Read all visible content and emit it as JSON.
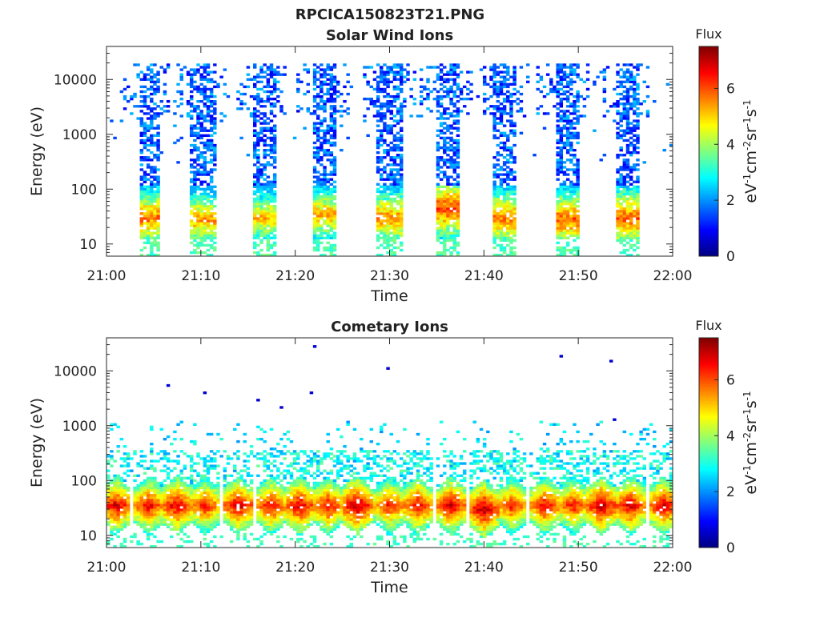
{
  "figure_title": "RPCICA150823T21.PNG",
  "chart_data": [
    {
      "type": "heatmap",
      "title": "Solar Wind Ions",
      "xlabel": "Time",
      "ylabel": "Energy (eV)",
      "x_range": [
        "21:00",
        "22:00"
      ],
      "x_ticks": [
        "21:00",
        "21:10",
        "21:20",
        "21:30",
        "21:40",
        "21:50",
        "22:00"
      ],
      "y_scale": "log",
      "y_range": [
        6,
        40000
      ],
      "y_ticks": [
        10,
        100,
        1000,
        10000
      ],
      "y_tick_labels": [
        "10",
        "100",
        "1000",
        "10000"
      ],
      "colorbar": {
        "title": "Flux",
        "label": "eV-1cm-2sr-1s-1",
        "range": [
          0,
          7.5
        ],
        "ticks": [
          0,
          2,
          4,
          6
        ],
        "tick_labels": [
          "0",
          "2",
          "4",
          "6"
        ],
        "colormap": "jet"
      },
      "bursts": [
        {
          "t_start_min": 3.5,
          "t_end_min": 5.5,
          "peak_energy_ev": 30,
          "peak_flux": 5.8
        },
        {
          "t_start_min": 9.0,
          "t_end_min": 11.5,
          "peak_energy_ev": 28,
          "peak_flux": 5.5
        },
        {
          "t_start_min": 15.5,
          "t_end_min": 18.0,
          "peak_energy_ev": 30,
          "peak_flux": 5.2
        },
        {
          "t_start_min": 22.0,
          "t_end_min": 24.5,
          "peak_energy_ev": 35,
          "peak_flux": 5.4
        },
        {
          "t_start_min": 28.5,
          "t_end_min": 31.5,
          "peak_energy_ev": 30,
          "peak_flux": 5.6
        },
        {
          "t_start_min": 35.0,
          "t_end_min": 37.5,
          "peak_energy_ev": 45,
          "peak_flux": 6.2
        },
        {
          "t_start_min": 41.0,
          "t_end_min": 43.5,
          "peak_energy_ev": 30,
          "peak_flux": 5.8
        },
        {
          "t_start_min": 47.5,
          "t_end_min": 50.0,
          "peak_energy_ev": 28,
          "peak_flux": 6.0
        },
        {
          "t_start_min": 54.0,
          "t_end_min": 56.5,
          "peak_energy_ev": 30,
          "peak_flux": 6.0
        }
      ]
    },
    {
      "type": "heatmap",
      "title": "Cometary Ions",
      "xlabel": "Time",
      "ylabel": "Energy (eV)",
      "x_range": [
        "21:00",
        "22:00"
      ],
      "x_ticks": [
        "21:00",
        "21:10",
        "21:20",
        "21:30",
        "21:40",
        "21:50",
        "22:00"
      ],
      "y_scale": "log",
      "y_range": [
        6,
        40000
      ],
      "y_ticks": [
        10,
        100,
        1000,
        10000
      ],
      "y_tick_labels": [
        "10",
        "100",
        "1000",
        "10000"
      ],
      "colorbar": {
        "title": "Flux",
        "label": "eV-1cm-2sr-1s-1",
        "range": [
          0,
          7.5
        ],
        "ticks": [
          0,
          2,
          4,
          6
        ],
        "tick_labels": [
          "0",
          "2",
          "4",
          "6"
        ],
        "colormap": "jet"
      },
      "bursts": [
        {
          "t_center_min": 1.0,
          "peak_energy_ev": 35,
          "peak_flux": 7.0
        },
        {
          "t_center_min": 4.5,
          "peak_energy_ev": 35,
          "peak_flux": 6.8
        },
        {
          "t_center_min": 7.5,
          "peak_energy_ev": 35,
          "peak_flux": 7.0
        },
        {
          "t_center_min": 10.5,
          "peak_energy_ev": 35,
          "peak_flux": 6.6
        },
        {
          "t_center_min": 14.0,
          "peak_energy_ev": 35,
          "peak_flux": 7.0
        },
        {
          "t_center_min": 17.5,
          "peak_energy_ev": 35,
          "peak_flux": 6.8
        },
        {
          "t_center_min": 20.5,
          "peak_energy_ev": 35,
          "peak_flux": 7.0
        },
        {
          "t_center_min": 23.5,
          "peak_energy_ev": 35,
          "peak_flux": 6.8
        },
        {
          "t_center_min": 26.5,
          "peak_energy_ev": 35,
          "peak_flux": 7.3
        },
        {
          "t_center_min": 30.0,
          "peak_energy_ev": 35,
          "peak_flux": 6.6
        },
        {
          "t_center_min": 33.0,
          "peak_energy_ev": 35,
          "peak_flux": 6.8
        },
        {
          "t_center_min": 36.5,
          "peak_energy_ev": 35,
          "peak_flux": 7.0
        },
        {
          "t_center_min": 40.0,
          "peak_energy_ev": 30,
          "peak_flux": 7.2
        },
        {
          "t_center_min": 43.0,
          "peak_energy_ev": 35,
          "peak_flux": 6.6
        },
        {
          "t_center_min": 46.5,
          "peak_energy_ev": 35,
          "peak_flux": 6.8
        },
        {
          "t_center_min": 49.5,
          "peak_energy_ev": 35,
          "peak_flux": 6.6
        },
        {
          "t_center_min": 52.5,
          "peak_energy_ev": 35,
          "peak_flux": 7.2
        },
        {
          "t_center_min": 55.5,
          "peak_energy_ev": 35,
          "peak_flux": 7.0
        },
        {
          "t_center_min": 59.0,
          "peak_energy_ev": 35,
          "peak_flux": 7.0
        }
      ]
    }
  ]
}
